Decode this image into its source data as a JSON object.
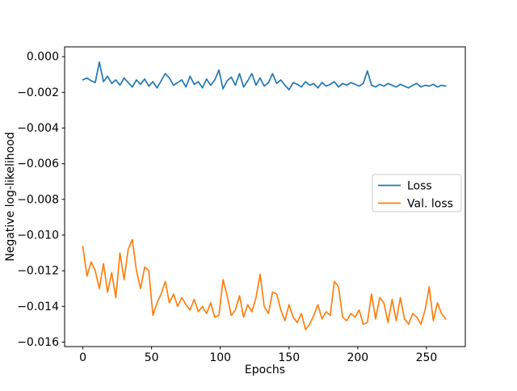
{
  "chart_data": {
    "type": "line",
    "title": "",
    "xlabel": "Epochs",
    "ylabel": "Negative log-likelihood",
    "xlim": [
      -13.25,
      278.25
    ],
    "ylim": [
      -0.01625,
      0.00055
    ],
    "grid": false,
    "legend": {
      "position": "center right",
      "entries": [
        "Loss",
        "Val. loss"
      ]
    },
    "xticks": {
      "values": [
        0,
        50,
        100,
        150,
        200,
        250
      ],
      "labels": [
        "0",
        "50",
        "100",
        "150",
        "200",
        "250"
      ]
    },
    "yticks": {
      "values": [
        0.0,
        -0.002,
        -0.004,
        -0.006,
        -0.008,
        -0.01,
        -0.012,
        -0.014,
        -0.016
      ],
      "labels": [
        "0.000",
        "−0.002",
        "−0.004",
        "−0.006",
        "−0.008",
        "−0.010",
        "−0.012",
        "−0.014",
        "−0.016"
      ]
    },
    "x": [
      0,
      3,
      6,
      9,
      12,
      15,
      18,
      21,
      24,
      27,
      30,
      33,
      36,
      39,
      42,
      45,
      48,
      51,
      54,
      57,
      60,
      63,
      66,
      69,
      72,
      75,
      78,
      81,
      84,
      87,
      90,
      93,
      96,
      99,
      102,
      105,
      108,
      111,
      114,
      117,
      120,
      123,
      126,
      129,
      132,
      135,
      138,
      141,
      144,
      147,
      150,
      153,
      156,
      159,
      162,
      165,
      168,
      171,
      174,
      177,
      180,
      183,
      186,
      189,
      192,
      195,
      198,
      201,
      204,
      207,
      210,
      213,
      216,
      219,
      222,
      225,
      228,
      231,
      234,
      237,
      240,
      243,
      246,
      249,
      252,
      255,
      258,
      261,
      264
    ],
    "series": [
      {
        "name": "Loss",
        "color": "#1f77b4",
        "values": [
          -0.0013,
          -0.0012,
          -0.00135,
          -0.00145,
          -0.0003,
          -0.0014,
          -0.0011,
          -0.0015,
          -0.0013,
          -0.0016,
          -0.0012,
          -0.00145,
          -0.0017,
          -0.0013,
          -0.00155,
          -0.00125,
          -0.00165,
          -0.0014,
          -0.00175,
          -0.00135,
          -0.00095,
          -0.0012,
          -0.0016,
          -0.00145,
          -0.0013,
          -0.0017,
          -0.0011,
          -0.00155,
          -0.0014,
          -0.00175,
          -0.00125,
          -0.0016,
          -0.0013,
          -0.00075,
          -0.0018,
          -0.00135,
          -0.00115,
          -0.0016,
          -0.00095,
          -0.0017,
          -0.00135,
          -0.00095,
          -0.0016,
          -0.0012,
          -0.00165,
          -0.00145,
          -0.00095,
          -0.0015,
          -0.0013,
          -0.0016,
          -0.00185,
          -0.00145,
          -0.00155,
          -0.0017,
          -0.0014,
          -0.0016,
          -0.0015,
          -0.00175,
          -0.00145,
          -0.00165,
          -0.00155,
          -0.0014,
          -0.0017,
          -0.0015,
          -0.0016,
          -0.00145,
          -0.00155,
          -0.00165,
          -0.0015,
          -0.0008,
          -0.0016,
          -0.0017,
          -0.00155,
          -0.00165,
          -0.0015,
          -0.0016,
          -0.0017,
          -0.00155,
          -0.00165,
          -0.00175,
          -0.0016,
          -0.0015,
          -0.0017,
          -0.0016,
          -0.00165,
          -0.00155,
          -0.0017,
          -0.0016,
          -0.00165
        ]
      },
      {
        "name": "Val. loss",
        "color": "#ff7f0e",
        "values": [
          -0.01065,
          -0.0123,
          -0.0115,
          -0.012,
          -0.013,
          -0.0116,
          -0.0132,
          -0.0121,
          -0.0135,
          -0.011,
          -0.0125,
          -0.0108,
          -0.01025,
          -0.012,
          -0.013,
          -0.0118,
          -0.012,
          -0.0145,
          -0.0138,
          -0.0133,
          -0.0126,
          -0.0138,
          -0.0133,
          -0.014,
          -0.0135,
          -0.0139,
          -0.0142,
          -0.0136,
          -0.0143,
          -0.014,
          -0.0144,
          -0.0138,
          -0.0146,
          -0.0145,
          -0.0125,
          -0.0134,
          -0.0145,
          -0.0142,
          -0.0134,
          -0.0146,
          -0.0139,
          -0.0143,
          -0.0135,
          -0.0122,
          -0.014,
          -0.0144,
          -0.0132,
          -0.0133,
          -0.0142,
          -0.0148,
          -0.0139,
          -0.0146,
          -0.0149,
          -0.0144,
          -0.0153,
          -0.015,
          -0.0145,
          -0.0139,
          -0.0147,
          -0.0143,
          -0.0145,
          -0.0126,
          -0.0129,
          -0.0146,
          -0.0148,
          -0.0144,
          -0.0146,
          -0.0142,
          -0.015,
          -0.0149,
          -0.0133,
          -0.0147,
          -0.0135,
          -0.0138,
          -0.0149,
          -0.0136,
          -0.0148,
          -0.0135,
          -0.0147,
          -0.015,
          -0.0144,
          -0.0146,
          -0.015,
          -0.0142,
          -0.0129,
          -0.0148,
          -0.0138,
          -0.0144,
          -0.0147
        ]
      }
    ],
    "spine_color": "#000000",
    "legend_border_color": "#cccccc",
    "legend_background": "#ffffff"
  }
}
